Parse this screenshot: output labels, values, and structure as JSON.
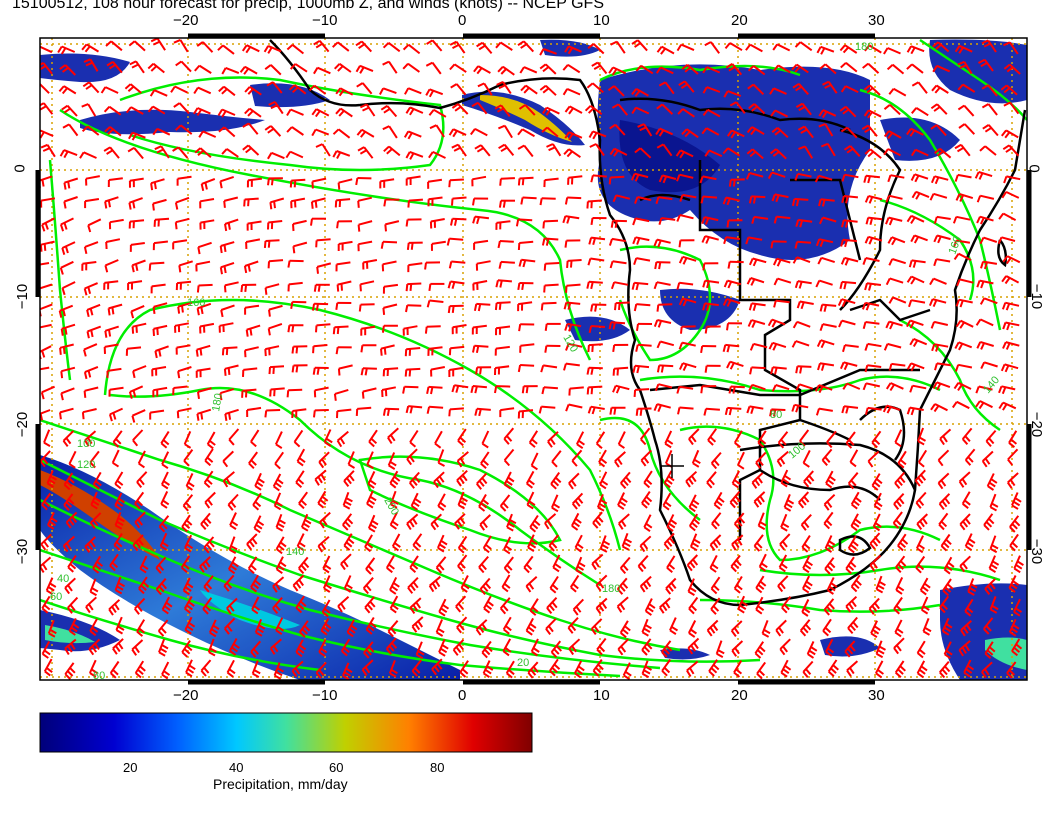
{
  "title": "15100512, 108 hour forecast for precip, 1000mb Z, and winds (knots) -- NCEP GFS",
  "lon_ticks": [
    "−20",
    "−10",
    "0",
    "10",
    "20",
    "30"
  ],
  "lat_ticks": [
    "0",
    "−10",
    "−20",
    "−30"
  ],
  "contour_labels": [
    "160",
    "180",
    "200",
    "180",
    "140",
    "120",
    "100",
    "80",
    "60",
    "40",
    "20",
    "80",
    "100",
    "120",
    "140",
    "160",
    "180"
  ],
  "colorbar": {
    "tick_labels": [
      "20",
      "40",
      "60",
      "80"
    ],
    "title": "Precipitation, mm/day",
    "range": [
      0,
      100
    ],
    "colors": [
      "#00007a",
      "#0000d0",
      "#0060ff",
      "#00c8ff",
      "#40e0a0",
      "#c0d000",
      "#ff8000",
      "#e00000",
      "#800000"
    ]
  },
  "map": {
    "lon_range": [
      -30,
      40
    ],
    "lat_range": [
      -40,
      10
    ],
    "grid_interval": 10,
    "wind_barb_color": "#ff0000",
    "contour_color": "#00ff00",
    "coast_color": "#000000",
    "grid_color": "#d8a000"
  },
  "marker": "+"
}
